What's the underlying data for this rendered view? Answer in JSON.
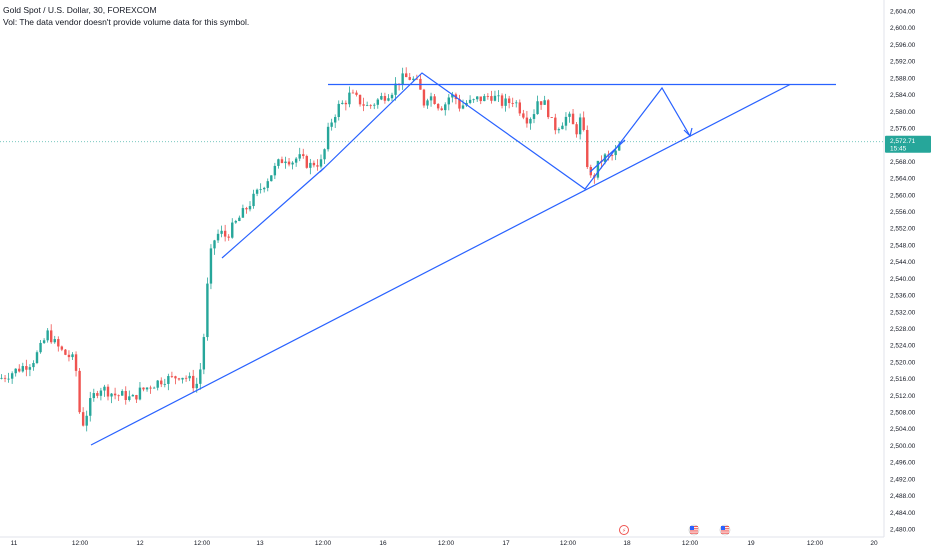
{
  "legend": {
    "symbol_line": "Gold Spot / U.S. Dollar, 30, FOREXCOM",
    "volume_note": "Vol: The data vendor doesn't provide volume data for this symbol."
  },
  "price_label": {
    "price": "2,572.71",
    "countdown": "15:45"
  },
  "events": {
    "flash_icon": "⚡",
    "flag_icon": "us-flag-icon"
  },
  "colors": {
    "up": "#26a69a",
    "down": "#ef5350",
    "drawing": "#2962ff",
    "price_line": "#26a69a"
  },
  "chart_data": {
    "type": "candlestick",
    "title": "Gold Spot / U.S. Dollar, 30, FOREXCOM",
    "timeframe": "30",
    "y_axis": {
      "ticks": [
        "2,604.00",
        "2,600.00",
        "2,596.00",
        "2,592.00",
        "2,588.00",
        "2,584.00",
        "2,580.00",
        "2,576.00",
        "2,572.00",
        "2,568.00",
        "2,564.00",
        "2,560.00",
        "2,556.00",
        "2,552.00",
        "2,548.00",
        "2,544.00",
        "2,540.00",
        "2,536.00",
        "2,532.00",
        "2,528.00",
        "2,524.00",
        "2,520.00",
        "2,516.00",
        "2,512.00",
        "2,508.00",
        "2,504.00",
        "2,500.00",
        "2,496.00",
        "2,492.00",
        "2,488.00",
        "2,484.00",
        "2,480.00"
      ],
      "range": [
        2480,
        2604
      ]
    },
    "x_axis": {
      "ticks": [
        "11",
        "12:00",
        "12",
        "12:00",
        "13",
        "12:00",
        "16",
        "12:00",
        "17",
        "12:00",
        "18",
        "12:00",
        "19",
        "12:00",
        "20"
      ]
    },
    "last_price": 2572.71,
    "price_path": [
      [
        0,
        2516
      ],
      [
        8,
        2517
      ],
      [
        16,
        2518
      ],
      [
        24,
        2519
      ],
      [
        32,
        2520
      ],
      [
        40,
        2523
      ],
      [
        48,
        2527
      ],
      [
        56,
        2524
      ],
      [
        64,
        2522
      ],
      [
        72,
        2521
      ],
      [
        76,
        2518
      ],
      [
        80,
        2507
      ],
      [
        84,
        2505
      ],
      [
        88,
        2509
      ],
      [
        94,
        2512
      ],
      [
        100,
        2514
      ],
      [
        108,
        2513
      ],
      [
        116,
        2512
      ],
      [
        124,
        2512
      ],
      [
        132,
        2511
      ],
      [
        140,
        2513
      ],
      [
        148,
        2514
      ],
      [
        156,
        2515
      ],
      [
        164,
        2516
      ],
      [
        172,
        2516
      ],
      [
        180,
        2517
      ],
      [
        188,
        2516
      ],
      [
        196,
        2514
      ],
      [
        202,
        2520
      ],
      [
        205,
        2530
      ],
      [
        208,
        2540
      ],
      [
        212,
        2548
      ],
      [
        216,
        2550
      ],
      [
        220,
        2551
      ],
      [
        226,
        2550
      ],
      [
        232,
        2552
      ],
      [
        238,
        2554
      ],
      [
        244,
        2556
      ],
      [
        250,
        2558
      ],
      [
        256,
        2560
      ],
      [
        262,
        2562
      ],
      [
        268,
        2564
      ],
      [
        274,
        2566
      ],
      [
        280,
        2568
      ],
      [
        286,
        2569
      ],
      [
        292,
        2568
      ],
      [
        298,
        2569
      ],
      [
        304,
        2568
      ],
      [
        310,
        2567
      ],
      [
        316,
        2568
      ],
      [
        320,
        2567
      ],
      [
        324,
        2570
      ],
      [
        328,
        2575
      ],
      [
        332,
        2578
      ],
      [
        338,
        2581
      ],
      [
        344,
        2582
      ],
      [
        350,
        2584
      ],
      [
        356,
        2583
      ],
      [
        362,
        2582
      ],
      [
        368,
        2581
      ],
      [
        374,
        2582
      ],
      [
        380,
        2583
      ],
      [
        386,
        2584
      ],
      [
        392,
        2585
      ],
      [
        398,
        2587
      ],
      [
        404,
        2588
      ],
      [
        410,
        2588
      ],
      [
        416,
        2587
      ],
      [
        420,
        2585
      ],
      [
        424,
        2582
      ],
      [
        428,
        2584
      ],
      [
        434,
        2583
      ],
      [
        440,
        2581
      ],
      [
        446,
        2582
      ],
      [
        450,
        2584
      ],
      [
        456,
        2583
      ],
      [
        460,
        2581
      ],
      [
        466,
        2582
      ],
      [
        472,
        2582
      ],
      [
        478,
        2583
      ],
      [
        484,
        2583
      ],
      [
        490,
        2584
      ],
      [
        496,
        2583
      ],
      [
        502,
        2582
      ],
      [
        508,
        2582
      ],
      [
        514,
        2583
      ],
      [
        518,
        2581
      ],
      [
        522,
        2580
      ],
      [
        528,
        2578
      ],
      [
        534,
        2580
      ],
      [
        538,
        2583
      ],
      [
        544,
        2582
      ],
      [
        548,
        2580
      ],
      [
        552,
        2577
      ],
      [
        556,
        2576
      ],
      [
        560,
        2577
      ],
      [
        564,
        2578
      ],
      [
        568,
        2579
      ],
      [
        572,
        2577
      ],
      [
        576,
        2575
      ],
      [
        580,
        2578
      ],
      [
        584,
        2574
      ],
      [
        588,
        2566
      ],
      [
        592,
        2563
      ],
      [
        596,
        2566
      ],
      [
        600,
        2568
      ],
      [
        604,
        2569
      ],
      [
        610,
        2569
      ],
      [
        616,
        2570
      ],
      [
        622,
        2572.71
      ]
    ],
    "drawings": {
      "resistance_line": 2586.5,
      "support_trendline": {
        "from": [
          2500.5
        ],
        "to": [
          2586.5
        ]
      },
      "projection": "zigzag"
    }
  }
}
